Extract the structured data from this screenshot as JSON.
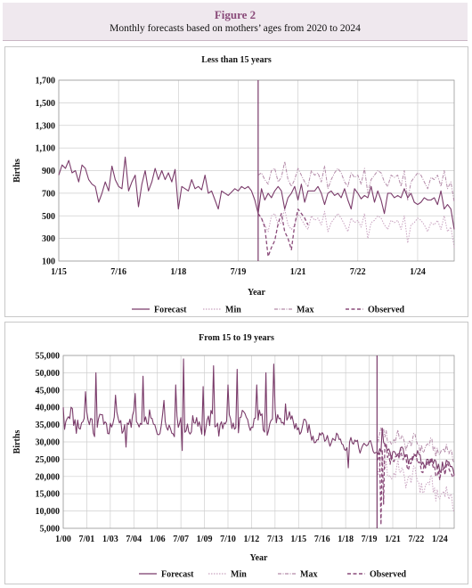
{
  "header": {
    "figure_label": "Figure 2",
    "figure_title": "Monthly forecasts based on mothers’ ages from 2020 to 2024"
  },
  "colors": {
    "forecast": "#7a3b6a",
    "min": "#c9a3c0",
    "max": "#b38aa8",
    "observed": "#8a4b7a",
    "header_bg": "#efe8ee",
    "grid": "#cfcfcf"
  },
  "chart_data": [
    {
      "type": "line",
      "title": "Less than 15 years",
      "xlabel": "Year",
      "ylabel": "Births",
      "ylim": [
        100,
        1700
      ],
      "yticks": [
        100,
        300,
        500,
        700,
        900,
        1100,
        1300,
        1500,
        1700
      ],
      "ytick_labels": [
        "100",
        "300",
        "500",
        "700",
        "900",
        "1,100",
        "1,300",
        "1,500",
        "1,700"
      ],
      "xrange": [
        "2015-01",
        "2024-12"
      ],
      "xticks": [
        {
          "date": "2015-01",
          "label": "1/15"
        },
        {
          "date": "2016-07",
          "label": "7/16"
        },
        {
          "date": "2018-01",
          "label": "1/18"
        },
        {
          "date": "2019-07",
          "label": "7/19"
        },
        {
          "date": "2021-01",
          "label": "1/21"
        },
        {
          "date": "2022-07",
          "label": "7/22"
        },
        {
          "date": "2024-01",
          "label": "1/24"
        }
      ],
      "grid": true,
      "legend_position": "bottom",
      "legend": [
        "Forecast",
        "Min",
        "Max",
        "Observed"
      ],
      "forecast_start": "2020-01",
      "spike": {
        "date": "2020-01",
        "value": 1700
      },
      "series": [
        {
          "name": "Forecast",
          "style": "solid",
          "start": "2015-01",
          "values": [
            860,
            950,
            920,
            990,
            880,
            900,
            800,
            950,
            920,
            820,
            780,
            760,
            620,
            700,
            800,
            720,
            940,
            820,
            760,
            740,
            1020,
            720,
            800,
            860,
            580,
            780,
            900,
            720,
            800,
            920,
            820,
            900,
            820,
            880,
            800,
            910,
            560,
            760,
            740,
            720,
            820,
            740,
            760,
            730,
            860,
            700,
            720,
            640,
            560,
            720,
            700,
            680,
            710,
            740,
            720,
            760,
            740,
            760,
            720,
            640,
            520,
            740,
            640,
            700,
            660,
            720,
            760,
            720,
            560,
            660,
            700,
            760,
            640,
            780,
            620,
            720,
            720,
            720,
            760,
            700,
            600,
            700,
            720,
            680,
            700,
            660,
            740,
            640,
            560,
            740,
            700,
            650,
            680,
            660,
            760,
            620,
            720,
            640,
            520,
            700,
            700,
            660,
            680,
            660,
            740,
            660,
            700,
            620,
            600,
            620,
            660,
            640,
            640,
            660,
            600,
            720,
            560,
            600,
            560,
            380
          ]
        },
        {
          "name": "Min",
          "style": "dotted",
          "start": "2020-01",
          "values": [
            500,
            480,
            420,
            360,
            500,
            520,
            420,
            440,
            560,
            420,
            380,
            420,
            520,
            470,
            420,
            380,
            500,
            460,
            480,
            420,
            540,
            360,
            440,
            480,
            520,
            480,
            420,
            360,
            480,
            440,
            460,
            400,
            520,
            300,
            440,
            460,
            500,
            480,
            420,
            380,
            460,
            440,
            460,
            380,
            500,
            260,
            420,
            440,
            480,
            460,
            420,
            360,
            440,
            420,
            460,
            380,
            500,
            360,
            400,
            220
          ]
        },
        {
          "name": "Max",
          "style": "dashdot",
          "start": "2020-01",
          "values": [
            860,
            880,
            820,
            780,
            900,
            920,
            800,
            840,
            980,
            820,
            760,
            820,
            920,
            860,
            800,
            760,
            900,
            860,
            880,
            800,
            940,
            740,
            820,
            880,
            920,
            880,
            800,
            760,
            880,
            840,
            860,
            780,
            920,
            700,
            820,
            860,
            900,
            880,
            800,
            760,
            860,
            840,
            860,
            760,
            900,
            640,
            800,
            840,
            880,
            860,
            800,
            740,
            840,
            820,
            860,
            760,
            900,
            740,
            800,
            620
          ]
        },
        {
          "name": "Observed",
          "style": "dashed",
          "start": "2020-01",
          "values": [
            520,
            480,
            400,
            140,
            220,
            280,
            430,
            520,
            360,
            300,
            200,
            420,
            560,
            520,
            480,
            420
          ]
        }
      ]
    },
    {
      "type": "line",
      "title": "From 15 to 19 years",
      "xlabel": "Year",
      "ylabel": "Births",
      "ylim": [
        5000,
        55000
      ],
      "yticks": [
        5000,
        10000,
        15000,
        20000,
        25000,
        30000,
        35000,
        40000,
        45000,
        50000,
        55000
      ],
      "ytick_labels": [
        "5,000",
        "10,000",
        "15,000",
        "20,000",
        "25,000",
        "30,000",
        "35,000",
        "40,000",
        "45,000",
        "50,000",
        "55,000"
      ],
      "xrange": [
        "2000-01",
        "2024-12"
      ],
      "xticks": [
        {
          "date": "2000-01",
          "label": "1/00"
        },
        {
          "date": "2001-07",
          "label": "7/01"
        },
        {
          "date": "2003-01",
          "label": "1/03"
        },
        {
          "date": "2004-07",
          "label": "7/04"
        },
        {
          "date": "2006-01",
          "label": "1/06"
        },
        {
          "date": "2007-07",
          "label": "7/07"
        },
        {
          "date": "2009-01",
          "label": "1/09"
        },
        {
          "date": "2010-07",
          "label": "7/10"
        },
        {
          "date": "2012-01",
          "label": "1/12"
        },
        {
          "date": "2013-07",
          "label": "7/13"
        },
        {
          "date": "2015-01",
          "label": "1/15"
        },
        {
          "date": "2016-07",
          "label": "7/16"
        },
        {
          "date": "2018-01",
          "label": "1/18"
        },
        {
          "date": "2019-07",
          "label": "7/19"
        },
        {
          "date": "2021-01",
          "label": "1/21"
        },
        {
          "date": "2022-07",
          "label": "7/22"
        },
        {
          "date": "2024-01",
          "label": "1/24"
        }
      ],
      "grid": true,
      "legend_position": "bottom",
      "legend": [
        "Forecast",
        "Min",
        "Max",
        "Observed"
      ],
      "forecast_start": "2020-01",
      "spike": {
        "date": "2020-01",
        "value": 55000
      },
      "series": [
        {
          "name": "Forecast",
          "style": "solid",
          "trend": [
            [
              2000.0,
              36000
            ],
            [
              2004.0,
              35000
            ],
            [
              2008.0,
              35000
            ],
            [
              2012.0,
              35500
            ],
            [
              2014.5,
              36000
            ],
            [
              2016.0,
              32000
            ],
            [
              2018.5,
              29500
            ],
            [
              2020.0,
              28000
            ],
            [
              2022.0,
              26000
            ],
            [
              2025.0,
              22000
            ]
          ],
          "amplitude": [
            [
              2000.0,
              4500
            ],
            [
              2014.5,
              4000
            ],
            [
              2016.0,
              3000
            ],
            [
              2020.0,
              2500
            ],
            [
              2025.0,
              3000
            ]
          ],
          "peaks": [
            [
              2000.0,
              40000
            ],
            [
              2001.4,
              44500
            ],
            [
              2002.1,
              50000
            ],
            [
              2003.3,
              43500
            ],
            [
              2004.6,
              44000
            ],
            [
              2005.1,
              49000
            ],
            [
              2006.4,
              42000
            ],
            [
              2007.2,
              46500
            ],
            [
              2007.7,
              54000
            ],
            [
              2008.9,
              46000
            ],
            [
              2009.6,
              52000
            ],
            [
              2010.5,
              46500
            ],
            [
              2011.1,
              51000
            ],
            [
              2012.3,
              46500
            ],
            [
              2012.9,
              50000
            ],
            [
              2013.4,
              52500
            ],
            [
              2014.2,
              41000
            ],
            [
              2020.3,
              34000
            ]
          ],
          "dips": [
            [
              2004.0,
              28500
            ],
            [
              2007.6,
              27500
            ],
            [
              2018.2,
              22500
            ]
          ]
        },
        {
          "name": "Min",
          "style": "dotted",
          "start": "2020-01",
          "base": [
            [
              2020.0,
              23000
            ],
            [
              2022.0,
              20000
            ],
            [
              2025.0,
              13000
            ]
          ],
          "amplitude": 4000
        },
        {
          "name": "Max",
          "style": "dashdot",
          "start": "2020-01",
          "base": [
            [
              2020.0,
              32000
            ],
            [
              2022.0,
              30000
            ],
            [
              2025.0,
              26500
            ]
          ],
          "amplitude": 3000
        },
        {
          "name": "Observed",
          "style": "dashed",
          "start": "2020-01",
          "base": [
            [
              2020.0,
              27000
            ],
            [
              2022.0,
              25000
            ],
            [
              2025.0,
              20000
            ]
          ],
          "amplitude": 3500,
          "dips": [
            [
              2020.25,
              6000
            ],
            [
              2020.4,
              12000
            ]
          ]
        }
      ]
    }
  ]
}
